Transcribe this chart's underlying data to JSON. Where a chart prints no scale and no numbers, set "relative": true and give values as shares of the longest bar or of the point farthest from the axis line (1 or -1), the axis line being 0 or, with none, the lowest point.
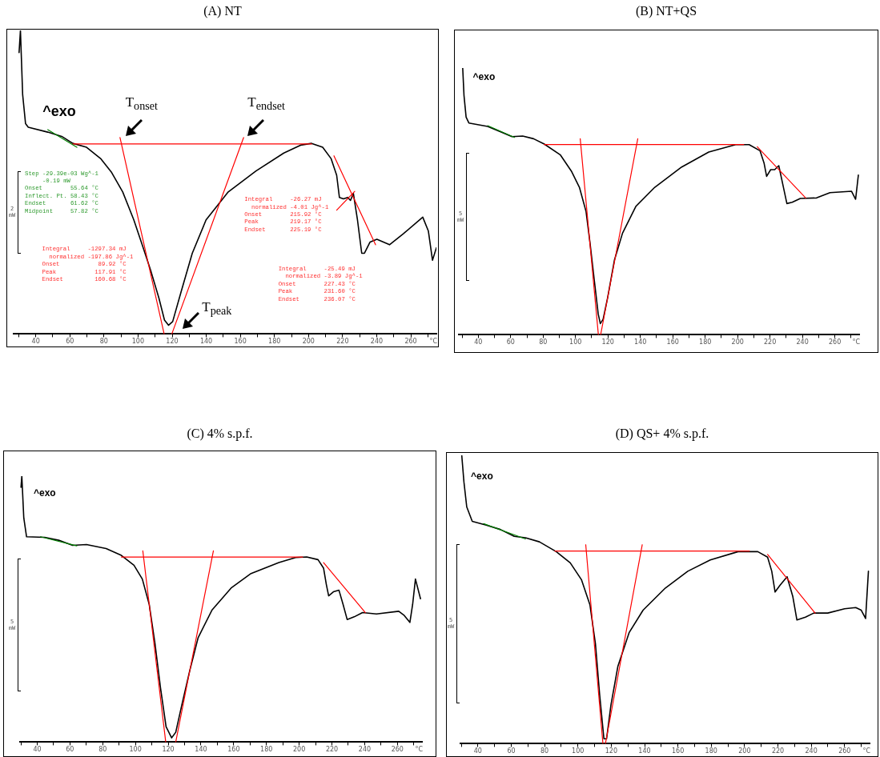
{
  "chart_data": [
    {
      "type": "line",
      "title": "(A) NT",
      "xlabel": "°C",
      "xlim": [
        27,
        275
      ],
      "relative": true,
      "tick_labels": "x",
      "marker": "none",
      "xticks": [
        {
          "value": 30,
          "label": null
        },
        40,
        {
          "value": 50,
          "label": null
        },
        60,
        {
          "value": 70,
          "label": null
        },
        80,
        {
          "value": 90,
          "label": null
        },
        100,
        {
          "value": 110,
          "label": null
        },
        120,
        {
          "value": 130,
          "label": null
        },
        140,
        {
          "value": 150,
          "label": null
        },
        160,
        {
          "value": 170,
          "label": null
        },
        180,
        {
          "value": 190,
          "label": null
        },
        200,
        {
          "value": 210,
          "label": null
        },
        220,
        {
          "value": 230,
          "label": null
        },
        240,
        {
          "value": 250,
          "label": null
        },
        260,
        {
          "value": 270,
          "label": null
        }
      ],
      "series": [
        {
          "color": "#000000",
          "x": [
            30.2,
            31.0,
            32.3,
            34.0,
            35.6,
            47.0,
            55.2,
            61.7,
            69.8,
            78.0,
            84.5,
            91.0,
            97.5,
            102.4,
            107.3,
            112.2,
            115.5,
            117.9,
            120.3,
            125.2,
            131.8,
            139.9,
            152.9,
            169.2,
            185.5,
            195.3,
            201.8,
            208.3,
            213.2,
            216.5,
            218.1,
            220.5,
            223.0,
            224.6,
            226.3,
            228.7,
            231.2,
            232.8,
            236.1,
            240.1,
            247.5,
            255.6,
            267.0,
            270.3,
            272.7,
            275.0
          ],
          "values": [
            0.927,
            1.0,
            0.789,
            0.693,
            0.681,
            0.665,
            0.651,
            0.628,
            0.615,
            0.578,
            0.532,
            0.468,
            0.376,
            0.294,
            0.211,
            0.119,
            0.046,
            0.029,
            0.041,
            0.138,
            0.266,
            0.376,
            0.468,
            0.537,
            0.596,
            0.622,
            0.628,
            0.615,
            0.578,
            0.523,
            0.45,
            0.445,
            0.45,
            0.44,
            0.463,
            0.376,
            0.266,
            0.266,
            0.303,
            0.312,
            0.294,
            0.33,
            0.385,
            0.339,
            0.243,
            0.284
          ]
        },
        {
          "color": "#ff0000",
          "x": [
            61.7,
            201.8
          ],
          "values": [
            0.626,
            0.626
          ]
        },
        {
          "color": "#ff0000",
          "x": [
            89.4,
            115.3
          ],
          "values": [
            0.647,
            0
          ]
        },
        {
          "color": "#ff0000",
          "x": [
            161.9,
            119.8
          ],
          "values": [
            0.647,
            0
          ]
        },
        {
          "color": "#ff0000",
          "x": [
            214.9,
            239.3
          ],
          "values": [
            0.587,
            0.294
          ]
        },
        {
          "color": "#ff0000",
          "x": [
            216.5,
            227.1
          ],
          "values": [
            0.408,
            0.47
          ]
        },
        {
          "color": "#008000",
          "x": [
            47.0,
            64.1
          ],
          "values": [
            0.673,
            0.615
          ]
        }
      ],
      "annotations": [
        "^exo",
        "T$_{onset}$",
        "T$_{endset}$",
        "T$_{peak}$",
        "Step -29.39e-03 Wg^-1\n     -0.19 mW\nOnset        55.64 °C\nInflect. Pt. 58.43 °C\nEndset       61.62 °C\nMidpoint     57.82 °C",
        "Integral     -1297.34 mJ\n  normalized -197.86 Jg^-1\nOnset           89.92 °C\nPeak           117.91 °C\nEndset         160.68 °C",
        "Integral     -26.27 mJ\n  normalized -4.01 Jg^-1\nOnset        215.92 °C\nPeak         219.17 °C\nEndset       225.19 °C",
        "Integral     -25.49 mJ\n  normalized -3.89 Jg^-1\nOnset        227.43 °C\nPeak         231.60 °C\nEndset       236.07 °C",
        "2 mW"
      ]
    },
    {
      "type": "line",
      "title": "(B) NT+QS",
      "xlabel": "°C",
      "xlim": [
        28,
        275
      ],
      "relative": true,
      "tick_labels": "x",
      "marker": "none",
      "xticks": [
        {
          "value": 30,
          "label": null
        },
        40,
        {
          "value": 50,
          "label": null
        },
        60,
        {
          "value": 70,
          "label": null
        },
        80,
        {
          "value": 90,
          "label": null
        },
        100,
        {
          "value": 110,
          "label": null
        },
        120,
        {
          "value": 130,
          "label": null
        },
        140,
        {
          "value": 150,
          "label": null
        },
        160,
        {
          "value": 170,
          "label": null
        },
        180,
        {
          "value": 190,
          "label": null
        },
        200,
        {
          "value": 210,
          "label": null
        },
        220,
        {
          "value": 230,
          "label": null
        },
        240,
        {
          "value": 250,
          "label": null
        },
        260,
        {
          "value": 270,
          "label": null
        }
      ],
      "series": [
        {
          "color": "#000000",
          "x": [
            30.4,
            31.2,
            32.5,
            34.2,
            45.8,
            54.1,
            60.8,
            67.4,
            74.1,
            80.7,
            90.7,
            97.4,
            102.4,
            106.5,
            109.0,
            111.5,
            114.0,
            115.3,
            117.0,
            119.8,
            124.0,
            129.0,
            137.3,
            148.9,
            165.5,
            182.2,
            198.8,
            207.1,
            213.8,
            216.3,
            217.9,
            220.4,
            222.9,
            225.4,
            227.9,
            230.4,
            233.7,
            238.7,
            248.7,
            257.0,
            270.3,
            272.8,
            274.5
          ],
          "values": [
            1.0,
            0.897,
            0.816,
            0.794,
            0.781,
            0.76,
            0.743,
            0.745,
            0.735,
            0.715,
            0.674,
            0.614,
            0.553,
            0.462,
            0.341,
            0.209,
            0.078,
            0.042,
            0.058,
            0.139,
            0.28,
            0.381,
            0.482,
            0.553,
            0.629,
            0.685,
            0.713,
            0.713,
            0.69,
            0.644,
            0.594,
            0.619,
            0.619,
            0.634,
            0.563,
            0.492,
            0.497,
            0.511,
            0.513,
            0.533,
            0.538,
            0.508,
            0.599
          ]
        },
        {
          "color": "#ff0000",
          "x": [
            80.7,
            203.8
          ],
          "values": [
            0.713,
            0.713
          ]
        },
        {
          "color": "#ff0000",
          "x": [
            102.9,
            114.1
          ],
          "values": [
            0.735,
            0
          ]
        },
        {
          "color": "#ff0000",
          "x": [
            138.4,
            115.5
          ],
          "values": [
            0.735,
            0
          ]
        },
        {
          "color": "#ff0000",
          "x": [
            212.1,
            242.0
          ],
          "values": [
            0.705,
            0.513
          ]
        },
        {
          "color": "#008000",
          "x": [
            45.8,
            62.4
          ],
          "values": [
            0.784,
            0.74
          ]
        }
      ],
      "annotations": [
        "^exo",
        "5 mW"
      ]
    },
    {
      "type": "line",
      "title": "(C) 4% s.p.f.",
      "xlabel": "°C",
      "xlim": [
        29.5,
        275
      ],
      "relative": true,
      "tick_labels": "x",
      "marker": "none",
      "xticks": [
        {
          "value": 30,
          "label": null
        },
        40,
        {
          "value": 50,
          "label": null
        },
        60,
        {
          "value": 70,
          "label": null
        },
        80,
        {
          "value": 90,
          "label": null
        },
        100,
        {
          "value": 110,
          "label": null
        },
        120,
        {
          "value": 130,
          "label": null
        },
        140,
        {
          "value": 150,
          "label": null
        },
        160,
        {
          "value": 170,
          "label": null
        },
        180,
        {
          "value": 190,
          "label": null
        },
        200,
        {
          "value": 210,
          "label": null
        },
        220,
        {
          "value": 230,
          "label": null
        },
        240,
        {
          "value": 250,
          "label": null
        },
        260,
        {
          "value": 270,
          "label": null
        }
      ],
      "series": [
        {
          "color": "#000000",
          "x": [
            30.1,
            30.6,
            31.8,
            33.5,
            44.6,
            53.1,
            61.6,
            70.1,
            82.1,
            91.4,
            99.1,
            104.2,
            108.4,
            111.9,
            115.3,
            118.7,
            122.1,
            124.6,
            128.0,
            133.1,
            138.3,
            146.8,
            158.7,
            170.6,
            187.6,
            197.8,
            204.6,
            211.5,
            214.9,
            216.6,
            218.0,
            220.9,
            224.3,
            226.8,
            229.3,
            233.6,
            238.7,
            247.2,
            260.8,
            264.2,
            267.6,
            269.3,
            271.0,
            274.1
          ],
          "values": [
            0.958,
            1.0,
            0.843,
            0.772,
            0.77,
            0.759,
            0.74,
            0.743,
            0.728,
            0.702,
            0.665,
            0.613,
            0.518,
            0.372,
            0.204,
            0.058,
            0.016,
            0.037,
            0.131,
            0.267,
            0.393,
            0.497,
            0.581,
            0.634,
            0.675,
            0.694,
            0.696,
            0.686,
            0.654,
            0.592,
            0.55,
            0.565,
            0.571,
            0.518,
            0.461,
            0.471,
            0.487,
            0.482,
            0.492,
            0.476,
            0.45,
            0.518,
            0.613,
            0.539
          ]
        },
        {
          "color": "#ff0000",
          "x": [
            91.4,
            202.1
          ],
          "values": [
            0.696,
            0.696
          ]
        },
        {
          "color": "#ff0000",
          "x": [
            104.5,
            118.5
          ],
          "values": [
            0.719,
            0
          ]
        },
        {
          "color": "#ff0000",
          "x": [
            147.6,
            124.6
          ],
          "values": [
            0.719,
            0
          ]
        },
        {
          "color": "#ff0000",
          "x": [
            214.9,
            240.4
          ],
          "values": [
            0.675,
            0.487
          ]
        },
        {
          "color": "#008000",
          "x": [
            42.0,
            64.2
          ],
          "values": [
            0.772,
            0.738
          ]
        }
      ],
      "annotations": [
        "^exo",
        "5 mW"
      ]
    },
    {
      "type": "line",
      "title": "(D) QS+ 4% s.p.f.",
      "xlabel": "°C",
      "xlim": [
        29.5,
        275
      ],
      "relative": true,
      "tick_labels": "x",
      "marker": "none",
      "xticks": [
        {
          "value": 30,
          "label": null
        },
        40,
        {
          "value": 50,
          "label": null
        },
        60,
        {
          "value": 70,
          "label": null
        },
        80,
        {
          "value": 90,
          "label": null
        },
        100,
        {
          "value": 110,
          "label": null
        },
        120,
        {
          "value": 130,
          "label": null
        },
        140,
        {
          "value": 150,
          "label": null
        },
        160,
        {
          "value": 170,
          "label": null
        },
        180,
        {
          "value": 190,
          "label": null
        },
        200,
        {
          "value": 210,
          "label": null
        },
        220,
        {
          "value": 230,
          "label": null
        },
        240,
        {
          "value": 250,
          "label": null
        },
        260,
        {
          "value": 270,
          "label": null
        }
      ],
      "series": [
        {
          "color": "#000000",
          "x": [
            30.3,
            31.6,
            33.3,
            36.6,
            45.0,
            53.4,
            61.8,
            68.5,
            76.9,
            87.0,
            95.4,
            102.1,
            107.2,
            110.5,
            113.0,
            115.6,
            117.2,
            119.8,
            124.0,
            130.7,
            139.1,
            152.5,
            165.9,
            179.4,
            196.1,
            207.9,
            213.8,
            216.3,
            218.3,
            221.3,
            225.5,
            228.9,
            231.4,
            236.5,
            241.5,
            249.9,
            260.0,
            266.7,
            270.0,
            272.6,
            274.3
          ],
          "values": [
            1.0,
            0.908,
            0.821,
            0.771,
            0.758,
            0.743,
            0.719,
            0.714,
            0.7,
            0.666,
            0.627,
            0.569,
            0.482,
            0.347,
            0.172,
            0.017,
            0.017,
            0.134,
            0.269,
            0.385,
            0.463,
            0.54,
            0.598,
            0.637,
            0.666,
            0.666,
            0.647,
            0.598,
            0.526,
            0.55,
            0.579,
            0.511,
            0.429,
            0.439,
            0.453,
            0.453,
            0.468,
            0.472,
            0.463,
            0.434,
            0.598
          ]
        },
        {
          "color": "#ff0000",
          "x": [
            86.2,
            202.9
          ],
          "values": [
            0.668,
            0.668
          ]
        },
        {
          "color": "#ff0000",
          "x": [
            104.7,
            115.0
          ],
          "values": [
            0.69,
            0
          ]
        },
        {
          "color": "#ff0000",
          "x": [
            138.6,
            116.5
          ],
          "values": [
            0.69,
            0
          ]
        },
        {
          "color": "#ff0000",
          "x": [
            213.8,
            242.3
          ],
          "values": [
            0.656,
            0.453
          ]
        },
        {
          "color": "#008000",
          "x": [
            43.4,
            68.5
          ],
          "values": [
            0.763,
            0.71
          ]
        }
      ],
      "annotations": [
        "^exo",
        "5 mW"
      ]
    }
  ]
}
